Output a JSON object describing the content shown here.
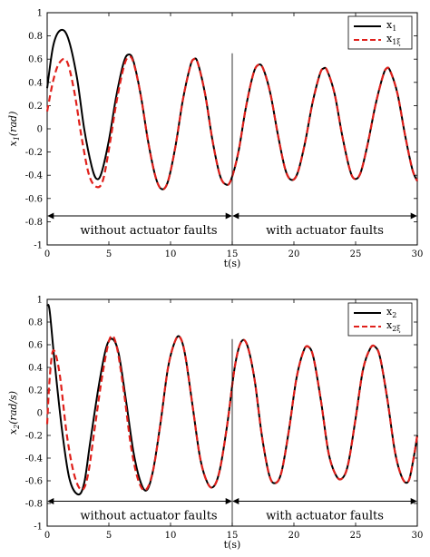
{
  "chart_data": [
    {
      "type": "line",
      "xlabel": "t(s)",
      "ylabel": "x1(rad)",
      "ylabel_main": "x",
      "ylabel_sub": "1",
      "ylabel_unit": "(rad)",
      "xlim": [
        0,
        30
      ],
      "ylim": [
        -1,
        1
      ],
      "xticks": [
        0,
        5,
        10,
        15,
        20,
        25,
        30
      ],
      "yticks": [
        -1,
        -0.8,
        -0.6,
        -0.4,
        -0.2,
        0,
        0.2,
        0.4,
        0.6,
        0.8,
        1
      ],
      "grid": false,
      "legend_position": "top-right",
      "series": [
        {
          "name": "x1",
          "legend_main": "x",
          "legend_sub": "1",
          "color": "#000000",
          "style": "solid",
          "x": [
            0,
            0.5,
            1.1,
            1.7,
            2.4,
            3.0,
            3.6,
            4.0,
            4.4,
            5.0,
            5.6,
            6.2,
            6.6,
            7.0,
            7.6,
            8.2,
            8.8,
            9.3,
            9.8,
            10.4,
            11.0,
            11.6,
            11.9,
            12.2,
            12.8,
            13.4,
            14.0,
            14.5,
            14.9,
            15.5,
            16.1,
            16.7,
            17.1,
            17.5,
            18.1,
            18.7,
            19.3,
            19.8,
            20.3,
            20.9,
            21.5,
            22.1,
            22.4,
            22.7,
            23.3,
            23.9,
            24.5,
            24.9,
            25.4,
            26.0,
            26.6,
            27.2,
            27.5,
            27.8,
            28.4,
            29.0,
            29.6,
            30.0
          ],
          "y": [
            0.35,
            0.72,
            0.85,
            0.78,
            0.45,
            0.0,
            -0.32,
            -0.43,
            -0.38,
            -0.1,
            0.28,
            0.57,
            0.64,
            0.58,
            0.28,
            -0.12,
            -0.42,
            -0.52,
            -0.45,
            -0.15,
            0.25,
            0.54,
            0.6,
            0.57,
            0.3,
            -0.1,
            -0.4,
            -0.48,
            -0.44,
            -0.2,
            0.18,
            0.47,
            0.55,
            0.52,
            0.3,
            -0.05,
            -0.35,
            -0.44,
            -0.38,
            -0.12,
            0.22,
            0.47,
            0.52,
            0.5,
            0.3,
            -0.05,
            -0.34,
            -0.43,
            -0.38,
            -0.12,
            0.2,
            0.45,
            0.52,
            0.5,
            0.3,
            -0.05,
            -0.35,
            -0.45
          ]
        },
        {
          "name": "x1ξ",
          "legend_main": "x",
          "legend_sub": "1ξ",
          "color": "#e0201b",
          "style": "dashed",
          "x": [
            0,
            0.5,
            1.0,
            1.6,
            2.2,
            2.8,
            3.4,
            4.0,
            4.5,
            5.0,
            5.6,
            6.2,
            6.6,
            7.0,
            7.6,
            8.2,
            8.8,
            9.3,
            9.8,
            10.4,
            11.0,
            11.6,
            11.9,
            12.2,
            12.8,
            13.4,
            14.0,
            14.5,
            14.9,
            15.5,
            16.1,
            16.7,
            17.1,
            17.5,
            18.1,
            18.7,
            19.3,
            19.8,
            20.3,
            20.9,
            21.5,
            22.1,
            22.4,
            22.7,
            23.3,
            23.9,
            24.5,
            24.9,
            25.4,
            26.0,
            26.6,
            27.2,
            27.5,
            27.8,
            28.4,
            29.0,
            29.6,
            30.0
          ],
          "y": [
            0.15,
            0.42,
            0.57,
            0.58,
            0.32,
            -0.08,
            -0.4,
            -0.5,
            -0.45,
            -0.18,
            0.22,
            0.53,
            0.62,
            0.57,
            0.28,
            -0.12,
            -0.42,
            -0.52,
            -0.45,
            -0.15,
            0.25,
            0.54,
            0.6,
            0.57,
            0.3,
            -0.1,
            -0.4,
            -0.48,
            -0.44,
            -0.2,
            0.18,
            0.47,
            0.55,
            0.52,
            0.3,
            -0.05,
            -0.35,
            -0.44,
            -0.38,
            -0.12,
            0.22,
            0.47,
            0.52,
            0.5,
            0.3,
            -0.05,
            -0.34,
            -0.43,
            -0.38,
            -0.12,
            0.2,
            0.45,
            0.52,
            0.5,
            0.3,
            -0.05,
            -0.35,
            -0.45
          ]
        }
      ],
      "annotations": {
        "fault_time": 15,
        "arrow_y": -0.75,
        "left_label": "without actuator faults",
        "right_label": "with actuator faults"
      }
    },
    {
      "type": "line",
      "xlabel": "t(s)",
      "ylabel": "x2(rad/s)",
      "ylabel_main": "x",
      "ylabel_sub": "2",
      "ylabel_unit": "(rad/s)",
      "xlim": [
        0,
        30
      ],
      "ylim": [
        -1,
        1
      ],
      "xticks": [
        0,
        5,
        10,
        15,
        20,
        25,
        30
      ],
      "yticks": [
        -1,
        -0.8,
        -0.6,
        -0.4,
        -0.2,
        0,
        0.2,
        0.4,
        0.6,
        0.8,
        1
      ],
      "grid": false,
      "legend_position": "top-right",
      "series": [
        {
          "name": "x2",
          "legend_main": "x",
          "legend_sub": "2",
          "color": "#000000",
          "style": "solid",
          "x": [
            0,
            0.2,
            0.6,
            1.2,
            1.8,
            2.5,
            3.0,
            3.5,
            4.2,
            4.8,
            5.3,
            5.8,
            6.4,
            7.0,
            7.6,
            8.1,
            8.6,
            9.2,
            9.8,
            10.4,
            10.8,
            11.2,
            11.8,
            12.4,
            13.0,
            13.5,
            14.0,
            14.6,
            15.2,
            15.7,
            16.2,
            16.8,
            17.4,
            18.0,
            18.5,
            19.0,
            19.6,
            20.2,
            20.8,
            21.2,
            21.6,
            22.2,
            22.8,
            23.4,
            23.9,
            24.4,
            25.0,
            25.6,
            26.2,
            26.6,
            27.0,
            27.6,
            28.2,
            28.8,
            29.3,
            29.7,
            30.0
          ],
          "y": [
            0.95,
            0.9,
            0.45,
            -0.15,
            -0.58,
            -0.72,
            -0.62,
            -0.25,
            0.25,
            0.58,
            0.65,
            0.52,
            0.1,
            -0.35,
            -0.62,
            -0.68,
            -0.5,
            -0.08,
            0.4,
            0.64,
            0.66,
            0.5,
            0.05,
            -0.4,
            -0.62,
            -0.65,
            -0.5,
            -0.1,
            0.4,
            0.62,
            0.6,
            0.3,
            -0.2,
            -0.55,
            -0.62,
            -0.52,
            -0.15,
            0.3,
            0.55,
            0.58,
            0.48,
            0.1,
            -0.35,
            -0.55,
            -0.58,
            -0.45,
            -0.05,
            0.38,
            0.57,
            0.58,
            0.48,
            0.1,
            -0.35,
            -0.58,
            -0.6,
            -0.4,
            -0.2
          ]
        },
        {
          "name": "x2ξ",
          "legend_main": "x",
          "legend_sub": "2ξ",
          "color": "#e0201b",
          "style": "dashed",
          "x": [
            0,
            0.2,
            0.5,
            1.0,
            1.6,
            2.2,
            2.8,
            3.3,
            3.9,
            4.5,
            5.1,
            5.6,
            6.2,
            6.8,
            7.4,
            8.0,
            8.6,
            9.2,
            9.8,
            10.4,
            10.8,
            11.2,
            11.8,
            12.4,
            13.0,
            13.5,
            14.0,
            14.6,
            15.2,
            15.7,
            16.2,
            16.8,
            17.4,
            18.0,
            18.5,
            19.0,
            19.6,
            20.2,
            20.8,
            21.2,
            21.6,
            22.2,
            22.8,
            23.4,
            23.9,
            24.4,
            25.0,
            25.6,
            26.2,
            26.6,
            27.0,
            27.6,
            28.2,
            28.8,
            29.3,
            29.7,
            30.0
          ],
          "y": [
            -0.1,
            0.3,
            0.55,
            0.35,
            -0.2,
            -0.55,
            -0.68,
            -0.55,
            -0.1,
            0.35,
            0.66,
            0.6,
            0.2,
            -0.3,
            -0.6,
            -0.68,
            -0.5,
            -0.08,
            0.4,
            0.64,
            0.66,
            0.5,
            0.05,
            -0.4,
            -0.62,
            -0.65,
            -0.5,
            -0.1,
            0.4,
            0.62,
            0.6,
            0.3,
            -0.2,
            -0.55,
            -0.62,
            -0.52,
            -0.15,
            0.3,
            0.55,
            0.58,
            0.48,
            0.1,
            -0.35,
            -0.55,
            -0.58,
            -0.45,
            -0.05,
            0.38,
            0.57,
            0.58,
            0.48,
            0.1,
            -0.35,
            -0.58,
            -0.6,
            -0.4,
            -0.2
          ]
        }
      ],
      "annotations": {
        "fault_time": 15,
        "arrow_y": -0.78,
        "left_label": "without actuator faults",
        "right_label": "with actuator faults"
      }
    }
  ]
}
